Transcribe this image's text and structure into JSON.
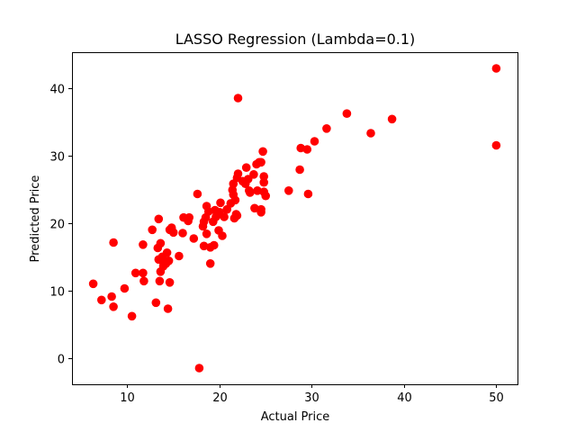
{
  "chart_data": {
    "type": "scatter",
    "title": "LASSO Regression (Lambda=0.1)",
    "xlabel": "Actual Price",
    "ylabel": "Predicted Price",
    "xlim": [
      4.0,
      52.3
    ],
    "ylim": [
      -3.9,
      45.3
    ],
    "xticks": [
      10,
      20,
      30,
      40,
      50
    ],
    "yticks": [
      0,
      10,
      20,
      30,
      40
    ],
    "grid": false,
    "point_color": "#ff0000",
    "series": [
      {
        "points": [
          [
            6.3,
            11.0
          ],
          [
            7.2,
            8.6
          ],
          [
            8.3,
            9.1
          ],
          [
            8.5,
            7.6
          ],
          [
            8.5,
            17.1
          ],
          [
            9.7,
            10.3
          ],
          [
            10.5,
            6.2
          ],
          [
            10.9,
            12.6
          ],
          [
            11.7,
            12.6
          ],
          [
            11.8,
            11.4
          ],
          [
            11.7,
            16.8
          ],
          [
            12.7,
            19.0
          ],
          [
            13.1,
            8.2
          ],
          [
            13.3,
            16.3
          ],
          [
            13.4,
            14.6
          ],
          [
            13.4,
            20.6
          ],
          [
            13.5,
            11.4
          ],
          [
            13.6,
            17.0
          ],
          [
            13.8,
            15.0
          ],
          [
            13.8,
            14.4
          ],
          [
            13.6,
            12.8
          ],
          [
            13.9,
            13.6
          ],
          [
            14.2,
            14.0
          ],
          [
            14.3,
            15.6
          ],
          [
            14.5,
            14.4
          ],
          [
            14.4,
            7.3
          ],
          [
            14.6,
            11.2
          ],
          [
            14.6,
            19.0
          ],
          [
            14.8,
            19.3
          ],
          [
            15.0,
            18.6
          ],
          [
            15.6,
            15.1
          ],
          [
            16.0,
            18.5
          ],
          [
            16.1,
            20.8
          ],
          [
            16.6,
            20.3
          ],
          [
            16.7,
            20.8
          ],
          [
            17.2,
            17.7
          ],
          [
            17.6,
            24.3
          ],
          [
            17.8,
            -1.5
          ],
          [
            18.2,
            19.5
          ],
          [
            18.3,
            16.6
          ],
          [
            18.3,
            20.2
          ],
          [
            18.5,
            20.8
          ],
          [
            18.6,
            22.5
          ],
          [
            18.6,
            18.4
          ],
          [
            18.8,
            21.7
          ],
          [
            19.0,
            14.0
          ],
          [
            19.0,
            16.4
          ],
          [
            19.3,
            20.2
          ],
          [
            19.4,
            16.7
          ],
          [
            19.5,
            21.9
          ],
          [
            19.6,
            20.9
          ],
          [
            19.9,
            18.9
          ],
          [
            20.0,
            21.6
          ],
          [
            20.1,
            23.0
          ],
          [
            20.3,
            18.1
          ],
          [
            20.5,
            20.9
          ],
          [
            20.8,
            22.0
          ],
          [
            21.2,
            22.9
          ],
          [
            21.4,
            24.9
          ],
          [
            21.5,
            25.8
          ],
          [
            21.5,
            24.2
          ],
          [
            21.6,
            20.7
          ],
          [
            21.7,
            23.4
          ],
          [
            21.8,
            21.3
          ],
          [
            21.9,
            21.1
          ],
          [
            21.9,
            26.7
          ],
          [
            22.0,
            27.3
          ],
          [
            22.0,
            38.5
          ],
          [
            22.5,
            26.2
          ],
          [
            22.8,
            25.8
          ],
          [
            22.9,
            28.2
          ],
          [
            23.1,
            26.5
          ],
          [
            23.2,
            24.8
          ],
          [
            23.3,
            24.5
          ],
          [
            23.7,
            27.2
          ],
          [
            23.8,
            22.2
          ],
          [
            24.0,
            28.7
          ],
          [
            24.1,
            24.8
          ],
          [
            24.3,
            29.0
          ],
          [
            24.5,
            21.6
          ],
          [
            24.5,
            22.0
          ],
          [
            24.5,
            29.0
          ],
          [
            24.7,
            30.6
          ],
          [
            24.8,
            26.0
          ],
          [
            24.8,
            26.9
          ],
          [
            24.8,
            24.6
          ],
          [
            25.0,
            24.0
          ],
          [
            27.5,
            24.8
          ],
          [
            28.7,
            27.9
          ],
          [
            28.8,
            31.1
          ],
          [
            29.5,
            30.9
          ],
          [
            29.6,
            24.3
          ],
          [
            30.3,
            32.1
          ],
          [
            31.6,
            34.0
          ],
          [
            33.8,
            36.2
          ],
          [
            36.4,
            33.3
          ],
          [
            38.7,
            35.4
          ],
          [
            50.0,
            42.9
          ],
          [
            50.0,
            31.5
          ]
        ]
      }
    ]
  }
}
